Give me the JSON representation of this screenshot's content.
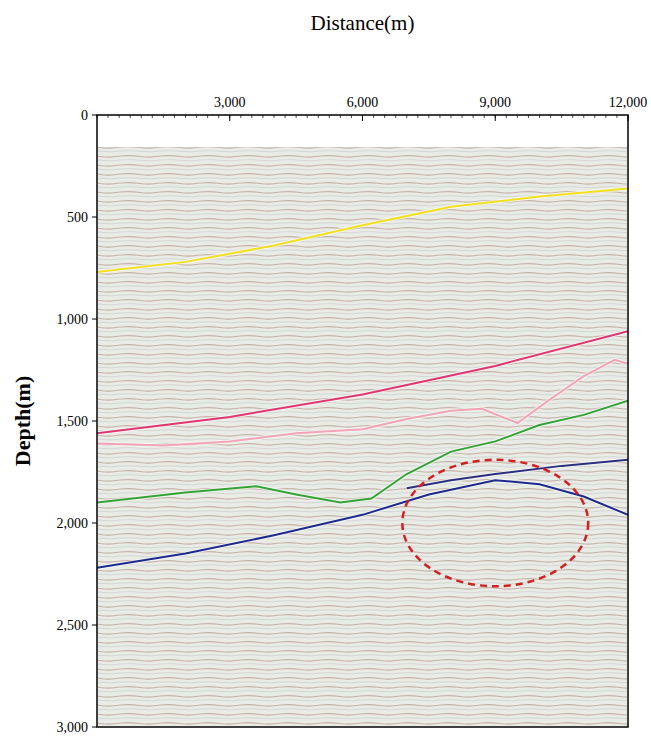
{
  "chart_data": {
    "type": "line",
    "x_label": "Distance(m)",
    "y_label": "Depth(m)",
    "xlim": [
      0,
      12000
    ],
    "xticks": [
      {
        "value": 3000,
        "label": "3,000"
      },
      {
        "value": 6000,
        "label": "6,000"
      },
      {
        "value": 9000,
        "label": "9,000"
      },
      {
        "value": 12000,
        "label": "12,000"
      }
    ],
    "ylim": [
      0,
      3000
    ],
    "yticks": [
      0,
      500,
      {
        "value": 1000,
        "label": "1,000"
      },
      {
        "value": 1500,
        "label": "1,500"
      },
      {
        "value": 2000,
        "label": "2,000"
      },
      {
        "value": 2500,
        "label": "2,500"
      },
      {
        "value": 3000,
        "label": "3,000"
      }
    ],
    "grid": false,
    "series": [
      {
        "color": "#f3e01c",
        "x": [
          0,
          2000,
          4000,
          6000,
          8000,
          10000,
          12000
        ],
        "values": [
          770,
          720,
          640,
          540,
          450,
          400,
          360
        ]
      },
      {
        "color": "#e0356f",
        "x": [
          0,
          3000,
          6000,
          9000,
          12000
        ],
        "values": [
          1560,
          1480,
          1370,
          1230,
          1060
        ]
      },
      {
        "color": "#f2a3b6",
        "x": [
          0,
          1500,
          3000,
          4500,
          6000,
          7000,
          8000,
          8700,
          9500,
          10200,
          11000,
          11700,
          12000
        ],
        "values": [
          1610,
          1620,
          1600,
          1560,
          1540,
          1490,
          1450,
          1440,
          1510,
          1400,
          1280,
          1200,
          1220
        ]
      },
      {
        "color": "#33a336",
        "x": [
          0,
          2000,
          3600,
          4500,
          5500,
          6200,
          7000,
          8000,
          9000,
          10000,
          11000,
          12000
        ],
        "values": [
          1900,
          1850,
          1820,
          1860,
          1900,
          1880,
          1760,
          1650,
          1600,
          1520,
          1470,
          1400
        ]
      },
      {
        "color": "#1c2a8e",
        "x": [
          0,
          2000,
          4000,
          6000,
          7500,
          9000,
          10000,
          11000,
          12000
        ],
        "values": [
          2220,
          2150,
          2060,
          1960,
          1860,
          1790,
          1810,
          1870,
          1960
        ]
      },
      {
        "color": "#2b2f7e",
        "x": [
          7000,
          8000,
          9000,
          10500,
          12000
        ],
        "values": [
          1830,
          1790,
          1760,
          1720,
          1690
        ]
      }
    ],
    "highlight": {
      "x": 9000,
      "y": 2000,
      "x_radius": 2100,
      "y_radius": 310,
      "color": "#d42020",
      "line_style": "dashed"
    }
  }
}
